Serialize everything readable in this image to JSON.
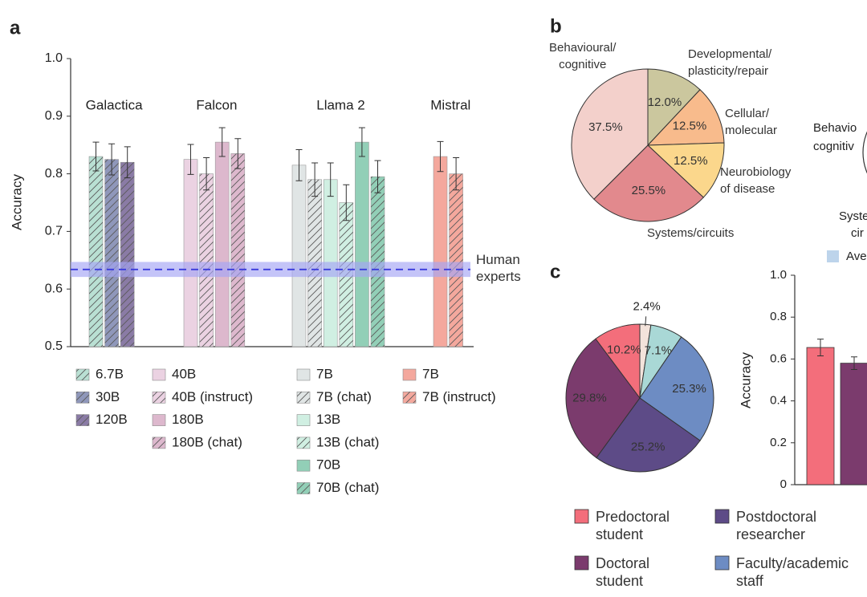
{
  "panels": [
    "a",
    "b",
    "c"
  ],
  "chart_data": [
    {
      "type": "bar",
      "ylabel": "Accuracy",
      "ylim": [
        0.5,
        1.0
      ],
      "yticks": [
        0.5,
        0.6,
        0.7,
        0.8,
        0.9,
        {
          "value": 1.0,
          "label": "1.0"
        }
      ],
      "groups": [
        {
          "name": "Galactica",
          "bars": [
            {
              "name": "6.7B",
              "color": "#b9e0d3",
              "hatch": true,
              "value": 0.83,
              "error": 0.025
            },
            {
              "name": "30B",
              "color": "#8f97ba",
              "hatch": true,
              "value": 0.825,
              "error": 0.027
            },
            {
              "name": "120B",
              "color": "#8a7ba5",
              "hatch": true,
              "value": 0.82,
              "error": 0.027
            }
          ]
        },
        {
          "name": "Falcon",
          "bars": [
            {
              "name": "40B",
              "color": "#ebd2e2",
              "hatch": false,
              "value": 0.825,
              "error": 0.026
            },
            {
              "name": "40B (instruct)",
              "color": "#ebd2e2",
              "hatch": true,
              "value": 0.8,
              "error": 0.028
            },
            {
              "name": "180B",
              "color": "#ddb8cd",
              "hatch": false,
              "value": 0.855,
              "error": 0.025
            },
            {
              "name": "180B (chat)",
              "color": "#ddb8cd",
              "hatch": true,
              "value": 0.835,
              "error": 0.026
            }
          ]
        },
        {
          "name": "Llama 2",
          "bars": [
            {
              "name": "7B",
              "color": "#e0e5e5",
              "hatch": false,
              "value": 0.815,
              "error": 0.027
            },
            {
              "name": "7B (chat)",
              "color": "#e0e5e5",
              "hatch": true,
              "value": 0.79,
              "error": 0.029
            },
            {
              "name": "13B",
              "color": "#d0efe2",
              "hatch": false,
              "value": 0.79,
              "error": 0.029
            },
            {
              "name": "13B (chat)",
              "color": "#d0efe2",
              "hatch": true,
              "value": 0.75,
              "error": 0.031
            },
            {
              "name": "70B",
              "color": "#92cfb7",
              "hatch": false,
              "value": 0.855,
              "error": 0.025
            },
            {
              "name": "70B (chat)",
              "color": "#92cfb7",
              "hatch": true,
              "value": 0.795,
              "error": 0.028
            }
          ]
        },
        {
          "name": "Mistral",
          "bars": [
            {
              "name": "7B",
              "color": "#f4a89d",
              "hatch": false,
              "value": 0.83,
              "error": 0.026
            },
            {
              "name": "7B (instruct)",
              "color": "#f4a89d",
              "hatch": true,
              "value": 0.8,
              "error": 0.028
            }
          ]
        }
      ],
      "reference": {
        "label": "Human\nexperts",
        "value": 0.634,
        "band": [
          0.621,
          0.647
        ],
        "color": "#3b3bdc",
        "band_color": "#a4a4f4"
      }
    },
    {
      "type": "pie",
      "categories": [
        "Developmental/\nplasticity/repair",
        "Cellular/\nmolecular",
        "Neurobiology\nof disease",
        "Systems/circuits",
        "Behavioural/\ncognitive"
      ],
      "values": [
        12.0,
        12.5,
        12.5,
        25.5,
        37.5
      ],
      "value_labels": [
        "12.0%",
        "12.5%",
        "12.5%",
        "25.5%",
        "37.5%"
      ],
      "colors": [
        "#cbc79e",
        "#f8bb8c",
        "#fbd78c",
        "#e2898d",
        "#f3d0cb"
      ]
    },
    {
      "type": "pie",
      "categories": [
        null,
        null,
        "Faculty/academic\nstaff",
        "Postdoctoral\nresearcher",
        "Doctoral\nstudent",
        "Predoctoral\nstudent"
      ],
      "values": [
        2.4,
        7.1,
        25.3,
        25.2,
        29.8,
        10.2
      ],
      "value_labels": [
        "2.4%",
        "7.1%",
        "25.3%",
        "25.2%",
        "29.8%",
        "10.2%"
      ],
      "colors": [
        "#f3e3db",
        "#a9d8d6",
        "#6d8cc3",
        "#5d4b87",
        "#7b3b6d",
        "#f36e7b"
      ]
    },
    {
      "type": "bar",
      "ylabel": "Accuracy",
      "ylim": [
        0,
        1.0
      ],
      "yticks": [
        0,
        0.2,
        0.4,
        0.6,
        0.8,
        {
          "value": 1.0,
          "label": "1.0"
        }
      ],
      "values": [
        0.655,
        0.58
      ],
      "errors": [
        0.04,
        0.03
      ],
      "colors": [
        "#f36e7b",
        "#7b3b6d"
      ]
    }
  ],
  "cropped": {
    "labels": [
      "Behavio",
      "cognitiv",
      "Syste",
      "cir"
    ],
    "legend": "Ave",
    "legend_color": "#bdd4eb"
  }
}
